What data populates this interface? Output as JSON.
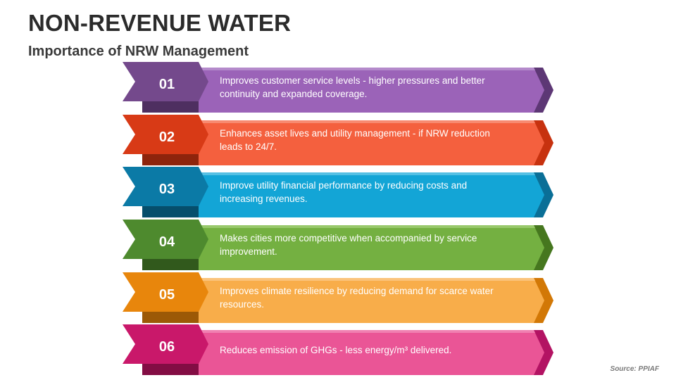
{
  "header": {
    "title": "NON-REVENUE WATER",
    "subtitle": "Importance of NRW Management"
  },
  "items": [
    {
      "number": "01",
      "text": "Improves customer service levels - higher pressures and better continuity and expanded coverage.",
      "colors": {
        "label": "#74498c",
        "label_dark": "#4e2f60",
        "band": "#9b63b8",
        "band_dark": "#5d3775",
        "band_top": "#b48acb"
      }
    },
    {
      "number": "02",
      "text": "Enhances asset lives and utility management - if NRW reduction leads to 24/7.",
      "colors": {
        "label": "#d83a16",
        "label_dark": "#8e240c",
        "band": "#f4603e",
        "band_dark": "#c7320f",
        "band_top": "#f78a70"
      }
    },
    {
      "number": "03",
      "text": "Improve utility financial performance by reducing costs and increasing revenues.",
      "colors": {
        "label": "#0b7aa6",
        "label_dark": "#064e6c",
        "band": "#13a5d6",
        "band_dark": "#0a6f97",
        "band_top": "#55c0e4"
      }
    },
    {
      "number": "04",
      "text": "Makes cities more competitive when accompanied by service improvement.",
      "colors": {
        "label": "#4e8a2e",
        "label_dark": "#31591c",
        "band": "#74b041",
        "band_dark": "#46771f",
        "band_top": "#98c86b"
      }
    },
    {
      "number": "05",
      "text": "Improves climate resilience by reducing demand for scarce water resources.",
      "colors": {
        "label": "#e8860c",
        "label_dark": "#9c5906",
        "band": "#f8ad4a",
        "band_dark": "#d27806",
        "band_top": "#fbc47c"
      }
    },
    {
      "number": "06",
      "text": "Reduces emission of GHGs - less energy/m³ delivered.",
      "colors": {
        "label": "#c9186a",
        "label_dark": "#830d44",
        "band": "#ea5596",
        "band_dark": "#b31363",
        "band_top": "#f080b1"
      }
    }
  ],
  "footer": {
    "source": "Source: PPIAF"
  }
}
